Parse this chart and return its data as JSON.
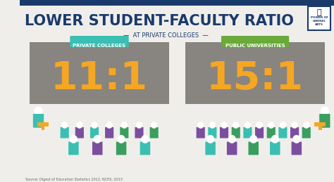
{
  "bg_color": "#f0eeeb",
  "header_bar_color": "#1a3a6b",
  "title": "LOWER STUDENT-FACULTY RATIO",
  "subtitle": "—  AT PRIVATE COLLEGES  —",
  "title_color": "#1a3a6b",
  "subtitle_color": "#1a3a6b",
  "panel_bg": "#888480",
  "panel_label_left": "PRIVATE COLLEGES",
  "panel_label_right": "PUBLIC UNIVERSITIES",
  "panel_label_bg_left": "#3bbfb2",
  "panel_label_bg_right": "#6aaa3a",
  "panel_label_color": "#ffffff",
  "ratio_left": "11:1",
  "ratio_right": "15:1",
  "ratio_color": "#f5a623",
  "source_text": "Source: Digest of Education Statistics 2012, NCES, 2013",
  "c_teal": "#3bbfb2",
  "c_purple": "#7b4f9e",
  "c_green": "#3a9e5f",
  "c_dkgreen": "#2d8a50",
  "c_white": "#ffffff",
  "c_outline": "#d0ccc8",
  "podium_color": "#f5a623",
  "left_students_colors": [
    "#3bbfb2",
    "#7b4f9e",
    "#3bbfb2",
    "#7b4f9e",
    "#3a9e5f",
    "#7b4f9e",
    "#3a9e5f",
    "#3bbfb2",
    "#7b4f9e",
    "#3a9e5f",
    "#3bbfb2"
  ],
  "right_students_colors": [
    "#7b4f9e",
    "#3bbfb2",
    "#7b4f9e",
    "#3a9e5f",
    "#3bbfb2",
    "#7b4f9e",
    "#3a9e5f",
    "#3bbfb2",
    "#7b4f9e",
    "#3a9e5f",
    "#3bbfb2",
    "#7b4f9e",
    "#3a9e5f",
    "#3bbfb2",
    "#7b4f9e"
  ],
  "lecturer_color_left": "#3bbfb2",
  "lecturer_color_right": "#3a9e5f"
}
